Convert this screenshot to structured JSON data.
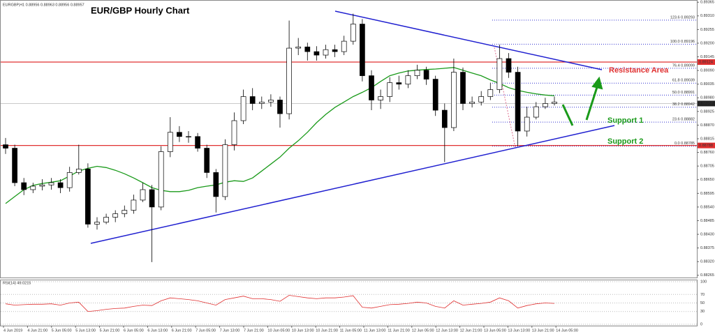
{
  "chart_data": {
    "type": "candlestick",
    "symbol_info": "EURGBP,H1  0.88956 0.88963 0.88956 0.88957",
    "title": "EUR/GBP Hourly Chart",
    "annotations": [
      "Resistance Area",
      "Support 1",
      "Support 2"
    ],
    "ylim": [
      0.88256,
      0.89374
    ],
    "yticks": [
      0.88265,
      {
        "value": 0.8832,
        "label": "0.88320"
      },
      0.88375,
      {
        "value": 0.8843,
        "label": "0.88430"
      },
      0.88485,
      {
        "value": 0.8854,
        "label": "0.88540"
      },
      0.88595,
      {
        "value": 0.8865,
        "label": "0.88650"
      },
      0.88705,
      {
        "value": 0.8876,
        "label": "0.88760"
      },
      0.88815,
      {
        "value": 0.8887,
        "label": "0.88870"
      },
      0.88925,
      {
        "value": 0.8898,
        "label": "0.88980"
      },
      0.89035,
      {
        "value": 0.8909,
        "label": "0.89090"
      },
      0.89145,
      {
        "value": 0.892,
        "label": "0.89200"
      },
      0.89255,
      {
        "value": 0.8931,
        "label": "0.89310"
      },
      0.89365
    ],
    "x_labels": [
      "4 Jun 2019",
      "4 Jun 21:00",
      "5 Jun 05:00",
      "5 Jun 13:00",
      "5 Jun 21:00",
      "6 Jun 05:00",
      "6 Jun 13:00",
      "6 Jun 21:00",
      "7 Jun 05:00",
      "7 Jun 13:00",
      "7 Jun 21:00",
      "10 Jun 05:00",
      "10 Jun 13:00",
      "10 Jun 21:00",
      "11 Jun 05:00",
      "11 Jun 13:00",
      "11 Jun 21:00",
      "12 Jun 05:00",
      "12 Jun 13:00",
      "12 Jun 21:00",
      "13 Jun 05:00",
      "13 Jun 13:00",
      "13 Jun 21:00",
      "14 Jun 05:00"
    ],
    "open": [
      0.88791,
      0.88777,
      0.88638,
      0.8861,
      0.88624,
      0.88629,
      0.88638,
      0.88618,
      0.88679,
      0.88693,
      0.88471,
      0.88479,
      0.88499,
      0.88513,
      0.88527,
      0.88568,
      0.8861,
      0.8854,
      0.88763,
      0.88841,
      0.88824,
      0.88824,
      0.88777,
      0.88679,
      0.88582,
      0.88791,
      0.88888,
      0.88985,
      0.88957,
      0.88963,
      0.88971,
      0.88916,
      0.8918,
      0.89185,
      0.89166,
      0.89152,
      0.89174,
      0.89166,
      0.89208,
      0.89277,
      0.89069,
      0.88971,
      0.88985,
      0.89041,
      0.89035,
      0.89069,
      0.89091,
      0.89055,
      0.8893,
      0.8886,
      0.89083,
      0.88957,
      0.88963,
      0.88985,
      0.89013,
      0.89138,
      0.89083,
      0.88846,
      0.88902,
      0.88944,
      0.88957
    ],
    "high": [
      0.88818,
      0.88791,
      0.88657,
      0.88638,
      0.88652,
      0.88657,
      0.88652,
      0.88702,
      0.88791,
      0.88716,
      0.88499,
      0.88513,
      0.88527,
      0.88546,
      0.8859,
      0.88638,
      0.88629,
      0.88785,
      0.88902,
      0.88866,
      0.88846,
      0.88838,
      0.88791,
      0.88693,
      0.88813,
      0.88921,
      0.89013,
      0.89019,
      0.88985,
      0.88994,
      0.88985,
      0.89291,
      0.89221,
      0.89202,
      0.89188,
      0.89194,
      0.89194,
      0.8923,
      0.89319,
      0.89297,
      0.89091,
      0.89013,
      0.89063,
      0.89069,
      0.89091,
      0.89113,
      0.89105,
      0.89069,
      0.88957,
      0.89138,
      0.89102,
      0.88985,
      0.89007,
      0.89041,
      0.89194,
      0.8916,
      0.89105,
      0.88944,
      0.88963,
      0.8898,
      0.88985
    ],
    "low": [
      0.88754,
      0.88624,
      0.88588,
      0.88596,
      0.88607,
      0.8861,
      0.88596,
      0.88602,
      0.88671,
      0.88457,
      0.88449,
      0.88471,
      0.88479,
      0.88499,
      0.88513,
      0.8856,
      0.88318,
      0.88527,
      0.88741,
      0.88802,
      0.88799,
      0.88763,
      0.88657,
      0.88518,
      0.88568,
      0.88768,
      0.88874,
      0.8893,
      0.88935,
      0.88944,
      0.8886,
      0.88893,
      0.89152,
      0.8913,
      0.8913,
      0.89138,
      0.89144,
      0.89152,
      0.89194,
      0.89046,
      0.8893,
      0.88935,
      0.88963,
      0.89013,
      0.89019,
      0.89055,
      0.89032,
      0.88907,
      0.88721,
      0.88846,
      0.8893,
      0.88941,
      0.88949,
      0.88971,
      0.88999,
      0.8906,
      0.88785,
      0.88824,
      0.88893,
      0.88935,
      0.88949
    ],
    "close": [
      0.88777,
      0.88638,
      0.8861,
      0.88624,
      0.88629,
      0.88638,
      0.88618,
      0.88679,
      0.88693,
      0.88471,
      0.88479,
      0.88499,
      0.88513,
      0.88527,
      0.88568,
      0.8861,
      0.8854,
      0.88763,
      0.88841,
      0.88824,
      0.88824,
      0.88777,
      0.88679,
      0.88582,
      0.88791,
      0.88888,
      0.88985,
      0.88957,
      0.88963,
      0.88971,
      0.88916,
      0.8918,
      0.89185,
      0.89166,
      0.89152,
      0.89174,
      0.89166,
      0.89208,
      0.89277,
      0.89069,
      0.88971,
      0.88985,
      0.89041,
      0.89035,
      0.89069,
      0.89091,
      0.89055,
      0.8893,
      0.8886,
      0.89083,
      0.88957,
      0.88963,
      0.88985,
      0.89013,
      0.89138,
      0.89083,
      0.88846,
      0.88902,
      0.88944,
      0.88957,
      0.88963
    ],
    "ma": {
      "color": "#1a9a1a",
      "values": [
        0.88554,
        0.88582,
        0.8861,
        0.88627,
        0.88635,
        0.8864,
        0.88646,
        0.88665,
        0.88685,
        0.88696,
        0.88704,
        0.88699,
        0.88688,
        0.88674,
        0.88657,
        0.88638,
        0.88618,
        0.88607,
        0.88602,
        0.88602,
        0.88607,
        0.88618,
        0.88624,
        0.88629,
        0.8864,
        0.88646,
        0.88643,
        0.88657,
        0.88685,
        0.88713,
        0.88741,
        0.88777,
        0.88807,
        0.88841,
        0.8888,
        0.88913,
        0.88941,
        0.88963,
        0.88985,
        0.89002,
        0.89021,
        0.89046,
        0.89069,
        0.8908,
        0.89088,
        0.89091,
        0.89094,
        0.89096,
        0.89099,
        0.89102,
        0.89091,
        0.8908,
        0.89069,
        0.89052,
        0.89038,
        0.89021,
        0.8901,
        0.89002,
        0.88996,
        0.88991,
        0.88988
      ]
    },
    "fib_levels": [
      {
        "value": 0.89293,
        "label": "123.6 0.89293"
      },
      {
        "value": 0.89196,
        "label": "100.0 0.89196"
      },
      {
        "value": 0.89099,
        "label": "76.4 0.89099"
      },
      {
        "value": 0.89039,
        "label": "61.8 0.89039"
      },
      {
        "value": 0.88991,
        "label": "50.0 0.88991"
      },
      {
        "value": 0.88942,
        "label": "38.2 0.88942"
      },
      {
        "value": 0.88882,
        "label": "23.6 0.88882"
      },
      {
        "value": 0.88785,
        "label": "0.0 0.88785"
      }
    ],
    "levels": [
      0.89124,
      0.88788
    ],
    "current_price": 0.88957,
    "rsi": {
      "title": "RSI(14) 49.0215",
      "color": "#e03030",
      "ylim": [
        0,
        100
      ],
      "yticks": [
        100,
        70,
        50,
        30,
        0
      ],
      "values": [
        48,
        45,
        46,
        47,
        47,
        48,
        45,
        50,
        52,
        30,
        32,
        35,
        37,
        38,
        42,
        45,
        44,
        55,
        62,
        60,
        58,
        55,
        50,
        45,
        58,
        62,
        66,
        60,
        60,
        58,
        54,
        68,
        65,
        62,
        60,
        62,
        62,
        64,
        67,
        40,
        38,
        42,
        46,
        47,
        49,
        52,
        50,
        42,
        38,
        55,
        45,
        47,
        49,
        52,
        62,
        55,
        38,
        44,
        48,
        50,
        49
      ]
    }
  }
}
